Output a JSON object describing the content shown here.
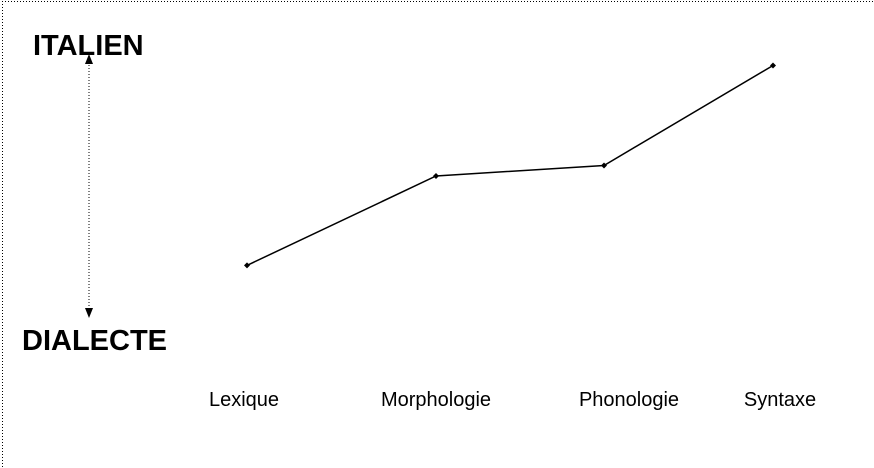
{
  "chart_data": {
    "type": "line",
    "y_top_label": "ITALIEN",
    "y_bottom_label": "DIALECTE",
    "categories": [
      "Lexique",
      "Morphologie",
      "Phonologie",
      "Syntaxe"
    ],
    "values": [
      20,
      54,
      58,
      96
    ],
    "ylim": [
      0,
      100
    ],
    "color": "#000000"
  }
}
